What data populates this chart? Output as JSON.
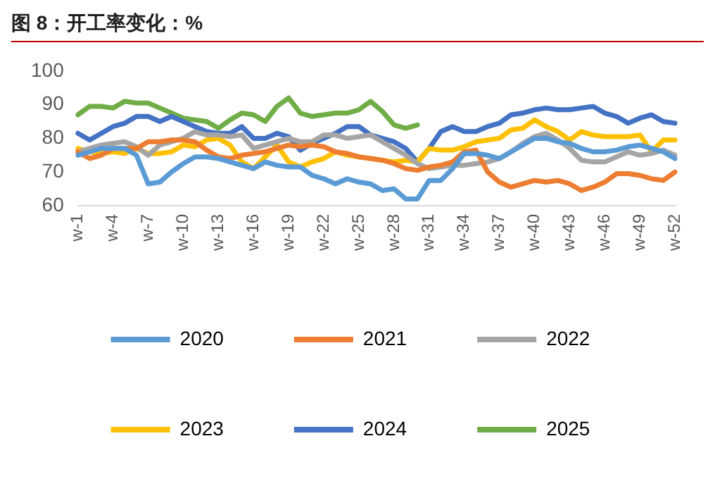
{
  "chart_data": {
    "type": "line",
    "title": "图 8：开工率变化：%",
    "categories": [
      "w-1",
      null,
      null,
      "w-4",
      null,
      null,
      "w-7",
      null,
      null,
      "w-10",
      null,
      null,
      "w-13",
      null,
      null,
      "w-16",
      null,
      null,
      "w-19",
      null,
      null,
      "w-22",
      null,
      null,
      "w-25",
      null,
      null,
      "w-28",
      null,
      null,
      "w-31",
      null,
      null,
      "w-34",
      null,
      null,
      "w-37",
      null,
      null,
      "w-40",
      null,
      null,
      "w-43",
      null,
      null,
      "w-46",
      null,
      null,
      "w-49",
      null,
      null,
      "w-52"
    ],
    "series": [
      {
        "name": "2020",
        "color": "#5b9bd5",
        "values": [
          75,
          76,
          77,
          77,
          77,
          75,
          66.5,
          67,
          70,
          72.5,
          74.5,
          74.5,
          74,
          73,
          72,
          71,
          73,
          72,
          71.5,
          71.5,
          69,
          68,
          66.5,
          68,
          67,
          66.5,
          64.5,
          65,
          62,
          62,
          67.5,
          67.5,
          71,
          75.5,
          75.5,
          75,
          74,
          76,
          78,
          80,
          80,
          79,
          78.5,
          77,
          76,
          76,
          76.5,
          77.5,
          78,
          77,
          76,
          74
        ]
      },
      {
        "name": "2021",
        "color": "#ed7d31",
        "values": [
          76,
          74,
          75,
          77,
          77,
          77,
          79,
          79,
          79.5,
          79.5,
          79,
          76.5,
          74.5,
          74,
          75,
          75.5,
          76,
          77,
          78,
          77.5,
          78,
          77.5,
          76,
          75.5,
          74.5,
          74,
          73.5,
          72.5,
          71,
          70.5,
          71.5,
          72,
          73,
          76,
          76.5,
          70,
          67,
          65.5,
          66.5,
          67.5,
          67,
          67.5,
          66.5,
          64.5,
          65.5,
          67,
          69.5,
          69.5,
          69,
          68,
          67.5,
          70
        ]
      },
      {
        "name": "2022",
        "color": "#a5a5a5",
        "values": [
          76,
          77,
          78,
          78.5,
          79,
          77.5,
          75,
          78,
          79,
          80,
          82,
          81,
          81,
          80.5,
          81,
          77,
          78,
          79,
          80,
          79,
          79,
          81,
          81,
          80,
          80.5,
          81,
          79,
          77,
          75,
          72.5,
          71,
          71.5,
          72,
          72,
          72.5,
          73,
          74,
          76,
          78.5,
          80.5,
          81.5,
          79.5,
          77,
          73.5,
          73,
          73,
          74.5,
          76,
          75,
          75.5,
          76.5,
          75
        ]
      },
      {
        "name": "2023",
        "color": "#ffc000",
        "values": [
          77,
          76,
          75.5,
          76,
          75.5,
          77,
          75.5,
          75.5,
          76,
          78,
          77.5,
          79.5,
          80,
          78,
          73,
          71,
          74.5,
          78,
          73,
          71.5,
          73,
          74,
          76,
          75,
          74.5,
          74,
          73.5,
          73,
          73.5,
          73,
          77,
          76.5,
          76.5,
          77.5,
          79,
          79.5,
          80,
          82.5,
          83,
          85.5,
          83.5,
          82,
          79.5,
          82,
          81,
          80.5,
          80.5,
          80.5,
          81,
          76,
          79.5,
          79.5
        ]
      },
      {
        "name": "2024",
        "color": "#4472c4",
        "values": [
          81.5,
          79.5,
          81.5,
          83.5,
          84.5,
          86.5,
          86.5,
          85,
          86.5,
          85,
          83.5,
          82,
          81.5,
          81.5,
          83.5,
          80,
          80,
          81.5,
          80.5,
          76.5,
          78.5,
          80,
          81.5,
          83.5,
          83.5,
          81,
          80,
          79,
          77,
          73,
          77,
          82,
          83.5,
          82,
          82,
          83.5,
          84.5,
          87,
          87.5,
          88.5,
          89,
          88.5,
          88.5,
          89,
          89.5,
          87.5,
          86.5,
          84.5,
          86,
          87,
          85,
          84.5
        ]
      },
      {
        "name": "2025",
        "color": "#70ad47",
        "values": [
          87,
          89.5,
          89.5,
          89,
          91,
          90.5,
          90.5,
          89,
          87.5,
          86,
          85.5,
          85,
          83,
          85.5,
          87.5,
          87,
          85,
          89.5,
          92,
          87.5,
          86.5,
          87,
          87.5,
          87.5,
          88.5,
          91,
          88,
          84,
          83,
          84,
          null,
          null,
          null,
          null,
          null,
          null,
          null,
          null,
          null,
          null,
          null,
          null,
          null,
          null,
          null,
          null,
          null,
          null,
          null,
          null,
          null,
          null
        ]
      }
    ],
    "ylim": [
      60,
      100
    ],
    "yticks": [
      60,
      70,
      80,
      90,
      100
    ],
    "grid": false,
    "legend": "bottom",
    "marker": "none",
    "line_style": "solid"
  }
}
